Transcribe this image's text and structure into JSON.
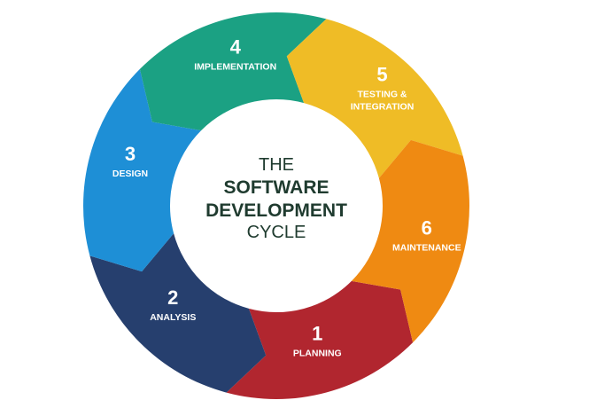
{
  "center": {
    "line1": "THE",
    "line2": "SOFTWARE",
    "line3": "DEVELOPMENT",
    "line4": "CYCLE",
    "text_color": "#1f3b2f"
  },
  "segments": [
    {
      "number": "1",
      "label": [
        "PLANNING"
      ],
      "color": "#b1262f"
    },
    {
      "number": "2",
      "label": [
        "ANALYSIS"
      ],
      "color": "#263f6e"
    },
    {
      "number": "3",
      "label": [
        "DESIGN"
      ],
      "color": "#1e8fd6"
    },
    {
      "number": "4",
      "label": [
        "IMPLEMENTATION"
      ],
      "color": "#1ba183"
    },
    {
      "number": "5",
      "label": [
        "TESTING &",
        "INTEGRATION"
      ],
      "color": "#efbc26"
    },
    {
      "number": "6",
      "label": [
        "MAINTENANCE"
      ],
      "color": "#ef8a12"
    }
  ]
}
